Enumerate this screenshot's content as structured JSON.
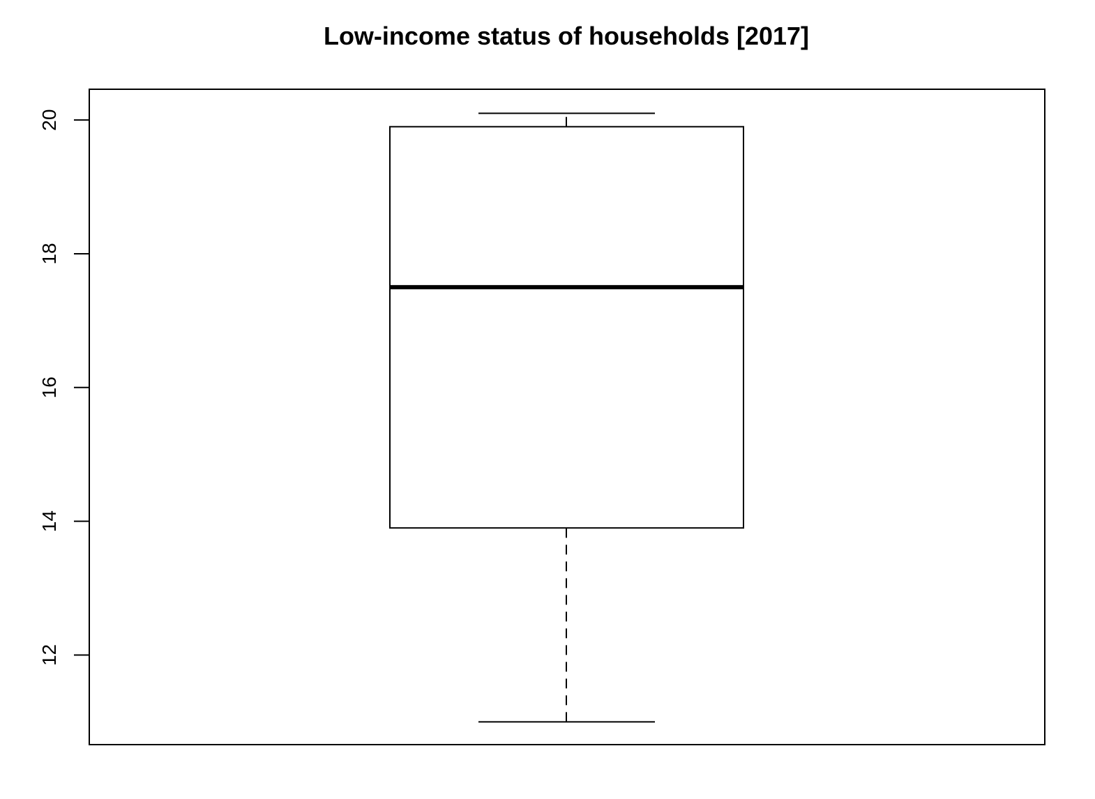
{
  "chart_data": {
    "type": "boxplot",
    "title": "Low-income status of households [2017]",
    "xlabel": "",
    "ylabel": "",
    "ylim": [
      10.66,
      20.46
    ],
    "y_ticks": [
      12,
      14,
      16,
      18,
      20
    ],
    "y_tick_labels": [
      "12",
      "14",
      "16",
      "18",
      "20"
    ],
    "box": {
      "whisker_low": 11.0,
      "q1": 13.9,
      "median": 17.5,
      "q3": 19.9,
      "whisker_high": 20.1
    },
    "grid": false,
    "colors": {
      "stroke": "#000000",
      "background": "#ffffff"
    }
  }
}
